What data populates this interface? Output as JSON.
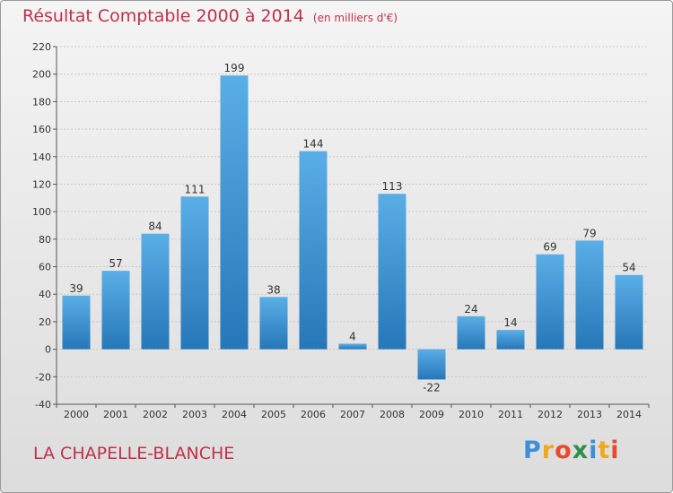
{
  "header": {
    "title": "Résultat Comptable 2000 à 2014",
    "subtitle": "(en milliers d'€)"
  },
  "footer": {
    "commune": "LA CHAPELLE-BLANCHE",
    "logo_letters": [
      "P",
      "r",
      "o",
      "x",
      "i",
      "t",
      "i"
    ],
    "logo_colors": [
      "#3a8fd6",
      "#f0a81e",
      "#e84a2c",
      "#2f8f4a",
      "#3a8fd6",
      "#f0a81e",
      "#e84a2c"
    ]
  },
  "colors": {
    "bar_top": "#5aaee6",
    "bar_bottom": "#2677b8",
    "grid": "#c8c8c8",
    "axis": "#555555",
    "text": "#333333"
  },
  "chart_data": {
    "type": "bar",
    "categories": [
      "2000",
      "2001",
      "2002",
      "2003",
      "2004",
      "2005",
      "2006",
      "2007",
      "2008",
      "2009",
      "2010",
      "2011",
      "2012",
      "2013",
      "2014"
    ],
    "values": [
      39,
      57,
      84,
      111,
      199,
      38,
      144,
      4,
      113,
      -22,
      24,
      14,
      69,
      79,
      54
    ],
    "data_labels": [
      "39",
      "57",
      "84",
      "111",
      "199",
      "38",
      "144",
      "4",
      "113",
      "-22",
      "24",
      "14",
      "69",
      "79",
      "54"
    ],
    "ylim": [
      -40,
      220
    ],
    "yticks": [
      -40,
      -20,
      0,
      20,
      40,
      60,
      80,
      100,
      120,
      140,
      160,
      180,
      200,
      220
    ],
    "title": "Résultat Comptable 2000 à 2014",
    "xlabel": "",
    "ylabel": "",
    "grid": true
  }
}
